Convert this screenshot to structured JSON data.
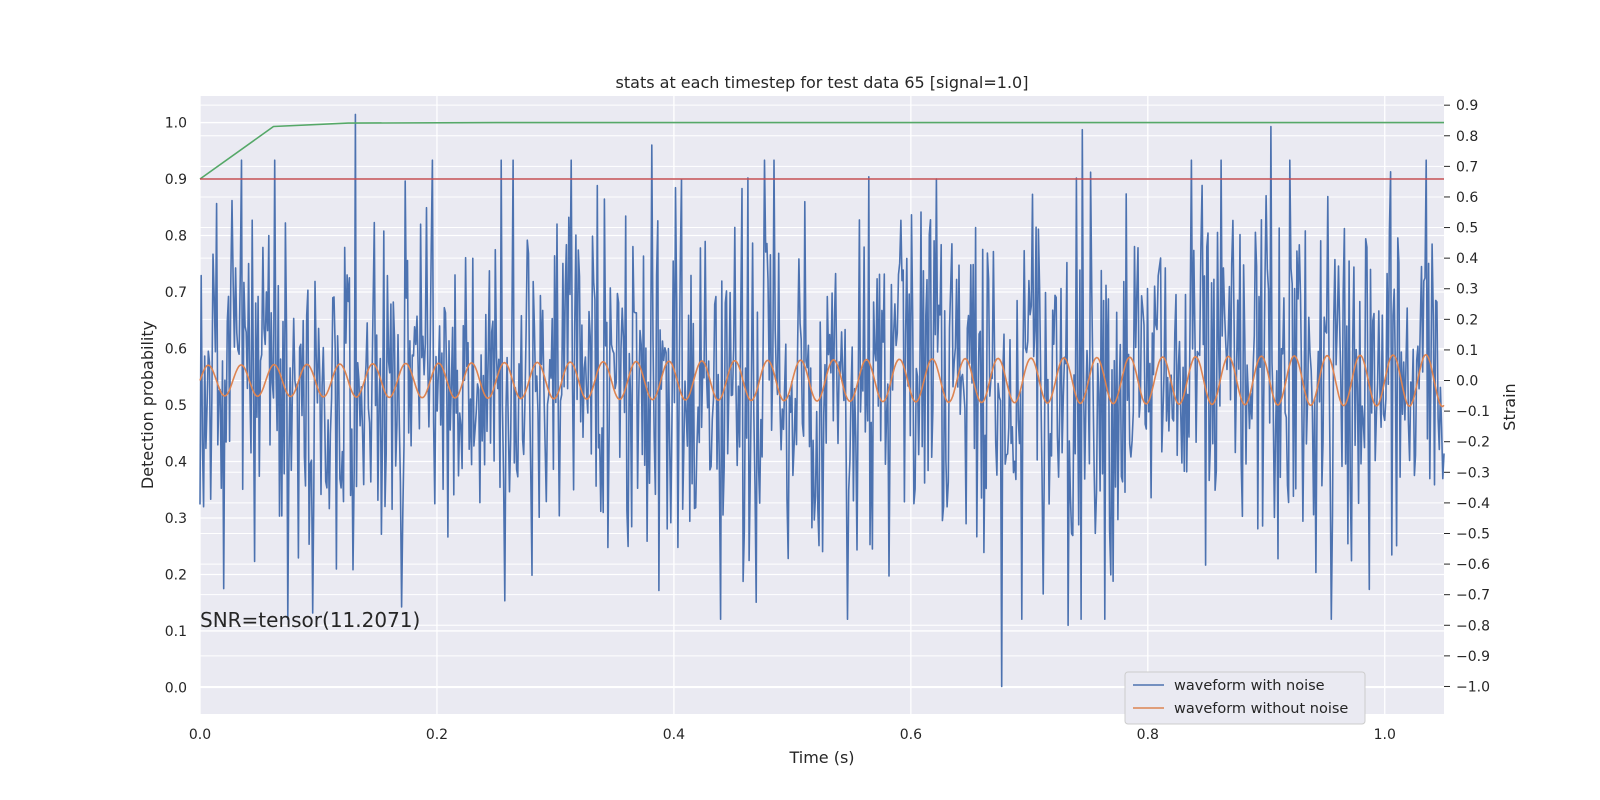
{
  "chart_data": {
    "type": "line",
    "title": "stats at each timestep for test data 65 [signal=1.0]",
    "xlabel": "Time (s)",
    "ylabel": "Detection probability",
    "ylabel_right": "Strain",
    "xlim": [
      0.0,
      1.05
    ],
    "ylim_left": [
      -0.047,
      1.047
    ],
    "ylim_right": [
      -1.09,
      0.93
    ],
    "x_ticks": [
      0.0,
      0.2,
      0.4,
      0.6,
      0.8,
      1.0
    ],
    "x_tick_labels": [
      "0.0",
      "0.2",
      "0.4",
      "0.6",
      "0.8",
      "1.0"
    ],
    "y_ticks_left": [
      0.0,
      0.1,
      0.2,
      0.3,
      0.4,
      0.5,
      0.6,
      0.7,
      0.8,
      0.9,
      1.0
    ],
    "y_tick_labels_left": [
      "0.0",
      "0.1",
      "0.2",
      "0.3",
      "0.4",
      "0.5",
      "0.6",
      "0.7",
      "0.8",
      "0.9",
      "1.0"
    ],
    "y_ticks_right": [
      -1.0,
      -0.9,
      -0.8,
      -0.7,
      -0.6,
      -0.5,
      -0.4,
      -0.3,
      -0.2,
      -0.1,
      0.0,
      0.1,
      0.2,
      0.3,
      0.4,
      0.5,
      0.6,
      0.7,
      0.8,
      0.9
    ],
    "y_tick_labels_right": [
      "−1.0",
      "−0.9",
      "−0.8",
      "−0.7",
      "−0.6",
      "−0.5",
      "−0.4",
      "−0.3",
      "−0.2",
      "−0.1",
      "0.0",
      "0.1",
      "0.2",
      "0.3",
      "0.4",
      "0.5",
      "0.6",
      "0.7",
      "0.8",
      "0.9"
    ],
    "grid": true,
    "legend_position": "bottom-right",
    "annotation": "SNR=tensor(11.2071)",
    "series": [
      {
        "name": "waveform with noise",
        "axis": "right",
        "color": "#4c72b0",
        "kind": "noise",
        "points": 1050,
        "x_range": [
          0.0,
          1.05
        ],
        "y_range": [
          -1.0,
          0.9
        ],
        "peaks": [
          {
            "x": 0.131,
            "y": 0.87
          },
          {
            "x": 0.677,
            "y": -1.0
          },
          {
            "x": 0.904,
            "y": 0.83
          },
          {
            "x": 0.745,
            "y": 0.82
          },
          {
            "x": 0.381,
            "y": 0.77
          },
          {
            "x": 0.068,
            "y": 0.07
          },
          {
            "x": 0.257,
            "y": -0.72
          },
          {
            "x": 0.095,
            "y": -0.76
          },
          {
            "x": 0.17,
            "y": -0.74
          },
          {
            "x": 0.955,
            "y": -0.78
          },
          {
            "x": 0.733,
            "y": -0.8
          },
          {
            "x": 0.02,
            "y": -0.68
          }
        ]
      },
      {
        "name": "waveform without noise",
        "axis": "right",
        "color": "#dd8452",
        "kind": "sine",
        "frequency_hz": 36,
        "amplitude_start": 0.05,
        "amplitude_end": 0.085,
        "offset": 0.0
      },
      {
        "axis": "left",
        "color": "#55a868",
        "kind": "polyline",
        "x": [
          0.0,
          0.062,
          0.125,
          0.25,
          0.5,
          0.75,
          1.05
        ],
        "y": [
          0.9,
          0.993,
          0.999,
          1.0,
          1.0,
          1.0,
          1.0
        ]
      },
      {
        "axis": "left",
        "color": "#c44e52",
        "kind": "polyline",
        "x": [
          0.0,
          1.05
        ],
        "y": [
          0.9,
          0.9
        ]
      }
    ]
  }
}
